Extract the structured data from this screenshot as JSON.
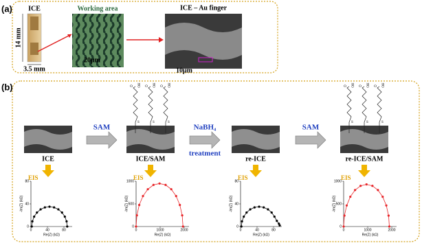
{
  "panel_a": {
    "label": "(a)",
    "chip_label": "ICE",
    "chip_length": "14 mm",
    "chip_width": "3.5 mm",
    "working_area_label": "Working area",
    "working_area_scale": "20μm",
    "sem_label": "ICE – Au finger",
    "sem_scale": "10μm"
  },
  "panel_b": {
    "label": "(b)",
    "stages": [
      "ICE",
      "ICE/SAM",
      "re-ICE",
      "re-ICE/SAM"
    ],
    "arrows": [
      {
        "top": "SAM"
      },
      {
        "top": "NaBH₄",
        "bottom": "treatment"
      },
      {
        "top": "SAM"
      }
    ],
    "molecule": {
      "carbonyl": "O",
      "hydroxyl": "OH",
      "sulfur": "S"
    },
    "eis_label": "EIS",
    "plots": [
      {
        "type": "scatter",
        "color": "#000000",
        "xlabel": "Re(Z) (kΩ)",
        "ylabel": "-Im(Z) (kΩ)",
        "xlim": [
          0,
          100
        ],
        "xticks": [
          0,
          40,
          80
        ],
        "ylim": [
          0,
          80
        ],
        "yticks": [
          0,
          40,
          80
        ],
        "x": [
          2,
          3.5,
          7.8,
          14.6,
          23.5,
          33.9,
          45,
          56.1,
          66.5,
          75.4,
          82.2,
          86.5,
          88
        ],
        "y": [
          0,
          9.1,
          17.5,
          24.7,
          30.3,
          33.8,
          35,
          33.8,
          30.3,
          24.7,
          17.5,
          9.1,
          0
        ]
      },
      {
        "type": "scatter",
        "color": "#e8262a",
        "xlabel": "Re(Z) (kΩ)",
        "ylabel": "-Im(Z) (kΩ)",
        "xlim": [
          0,
          2200
        ],
        "xticks": [
          0,
          1000,
          2000
        ],
        "ylim": [
          0,
          1000
        ],
        "yticks": [
          0,
          500,
          1000
        ],
        "x": [
          0,
          33,
          131,
          286,
          488,
          723,
          975,
          1227,
          1463,
          1664,
          1819,
          1917,
          1950
        ],
        "y": [
          0,
          246,
          475,
          672,
          823,
          918,
          950,
          918,
          823,
          672,
          475,
          246,
          0
        ]
      },
      {
        "type": "scatter",
        "color": "#000000",
        "xlabel": "Re(Z) (kΩ)",
        "ylabel": "-Im(Z) (kΩ)",
        "xlim": [
          0,
          100
        ],
        "xticks": [
          0,
          40,
          80
        ],
        "ylim": [
          0,
          80
        ],
        "yticks": [
          0,
          40,
          80
        ],
        "x": [
          2,
          3.5,
          7.8,
          14.6,
          23.5,
          33.9,
          45,
          56.1,
          66.5,
          75.4,
          82.2,
          88,
          93,
          95
        ],
        "y": [
          0,
          9.1,
          17.5,
          24.7,
          30.3,
          33.8,
          35,
          33.8,
          30.3,
          24.7,
          17.5,
          10,
          5,
          2
        ]
      },
      {
        "type": "scatter",
        "color": "#e8262a",
        "xlabel": "Re(Z) (kΩ)",
        "ylabel": "-Im(Z) (kΩ)",
        "xlim": [
          0,
          2200
        ],
        "xticks": [
          0,
          1000,
          2000
        ],
        "ylim": [
          0,
          1000
        ],
        "yticks": [
          0,
          500,
          1000
        ],
        "x": [
          0,
          32,
          127,
          278,
          475,
          704,
          950,
          1196,
          1425,
          1622,
          1773,
          1868,
          1900
        ],
        "y": [
          0,
          241,
          465,
          658,
          805,
          898,
          930,
          898,
          805,
          658,
          465,
          241,
          0
        ]
      }
    ]
  }
}
